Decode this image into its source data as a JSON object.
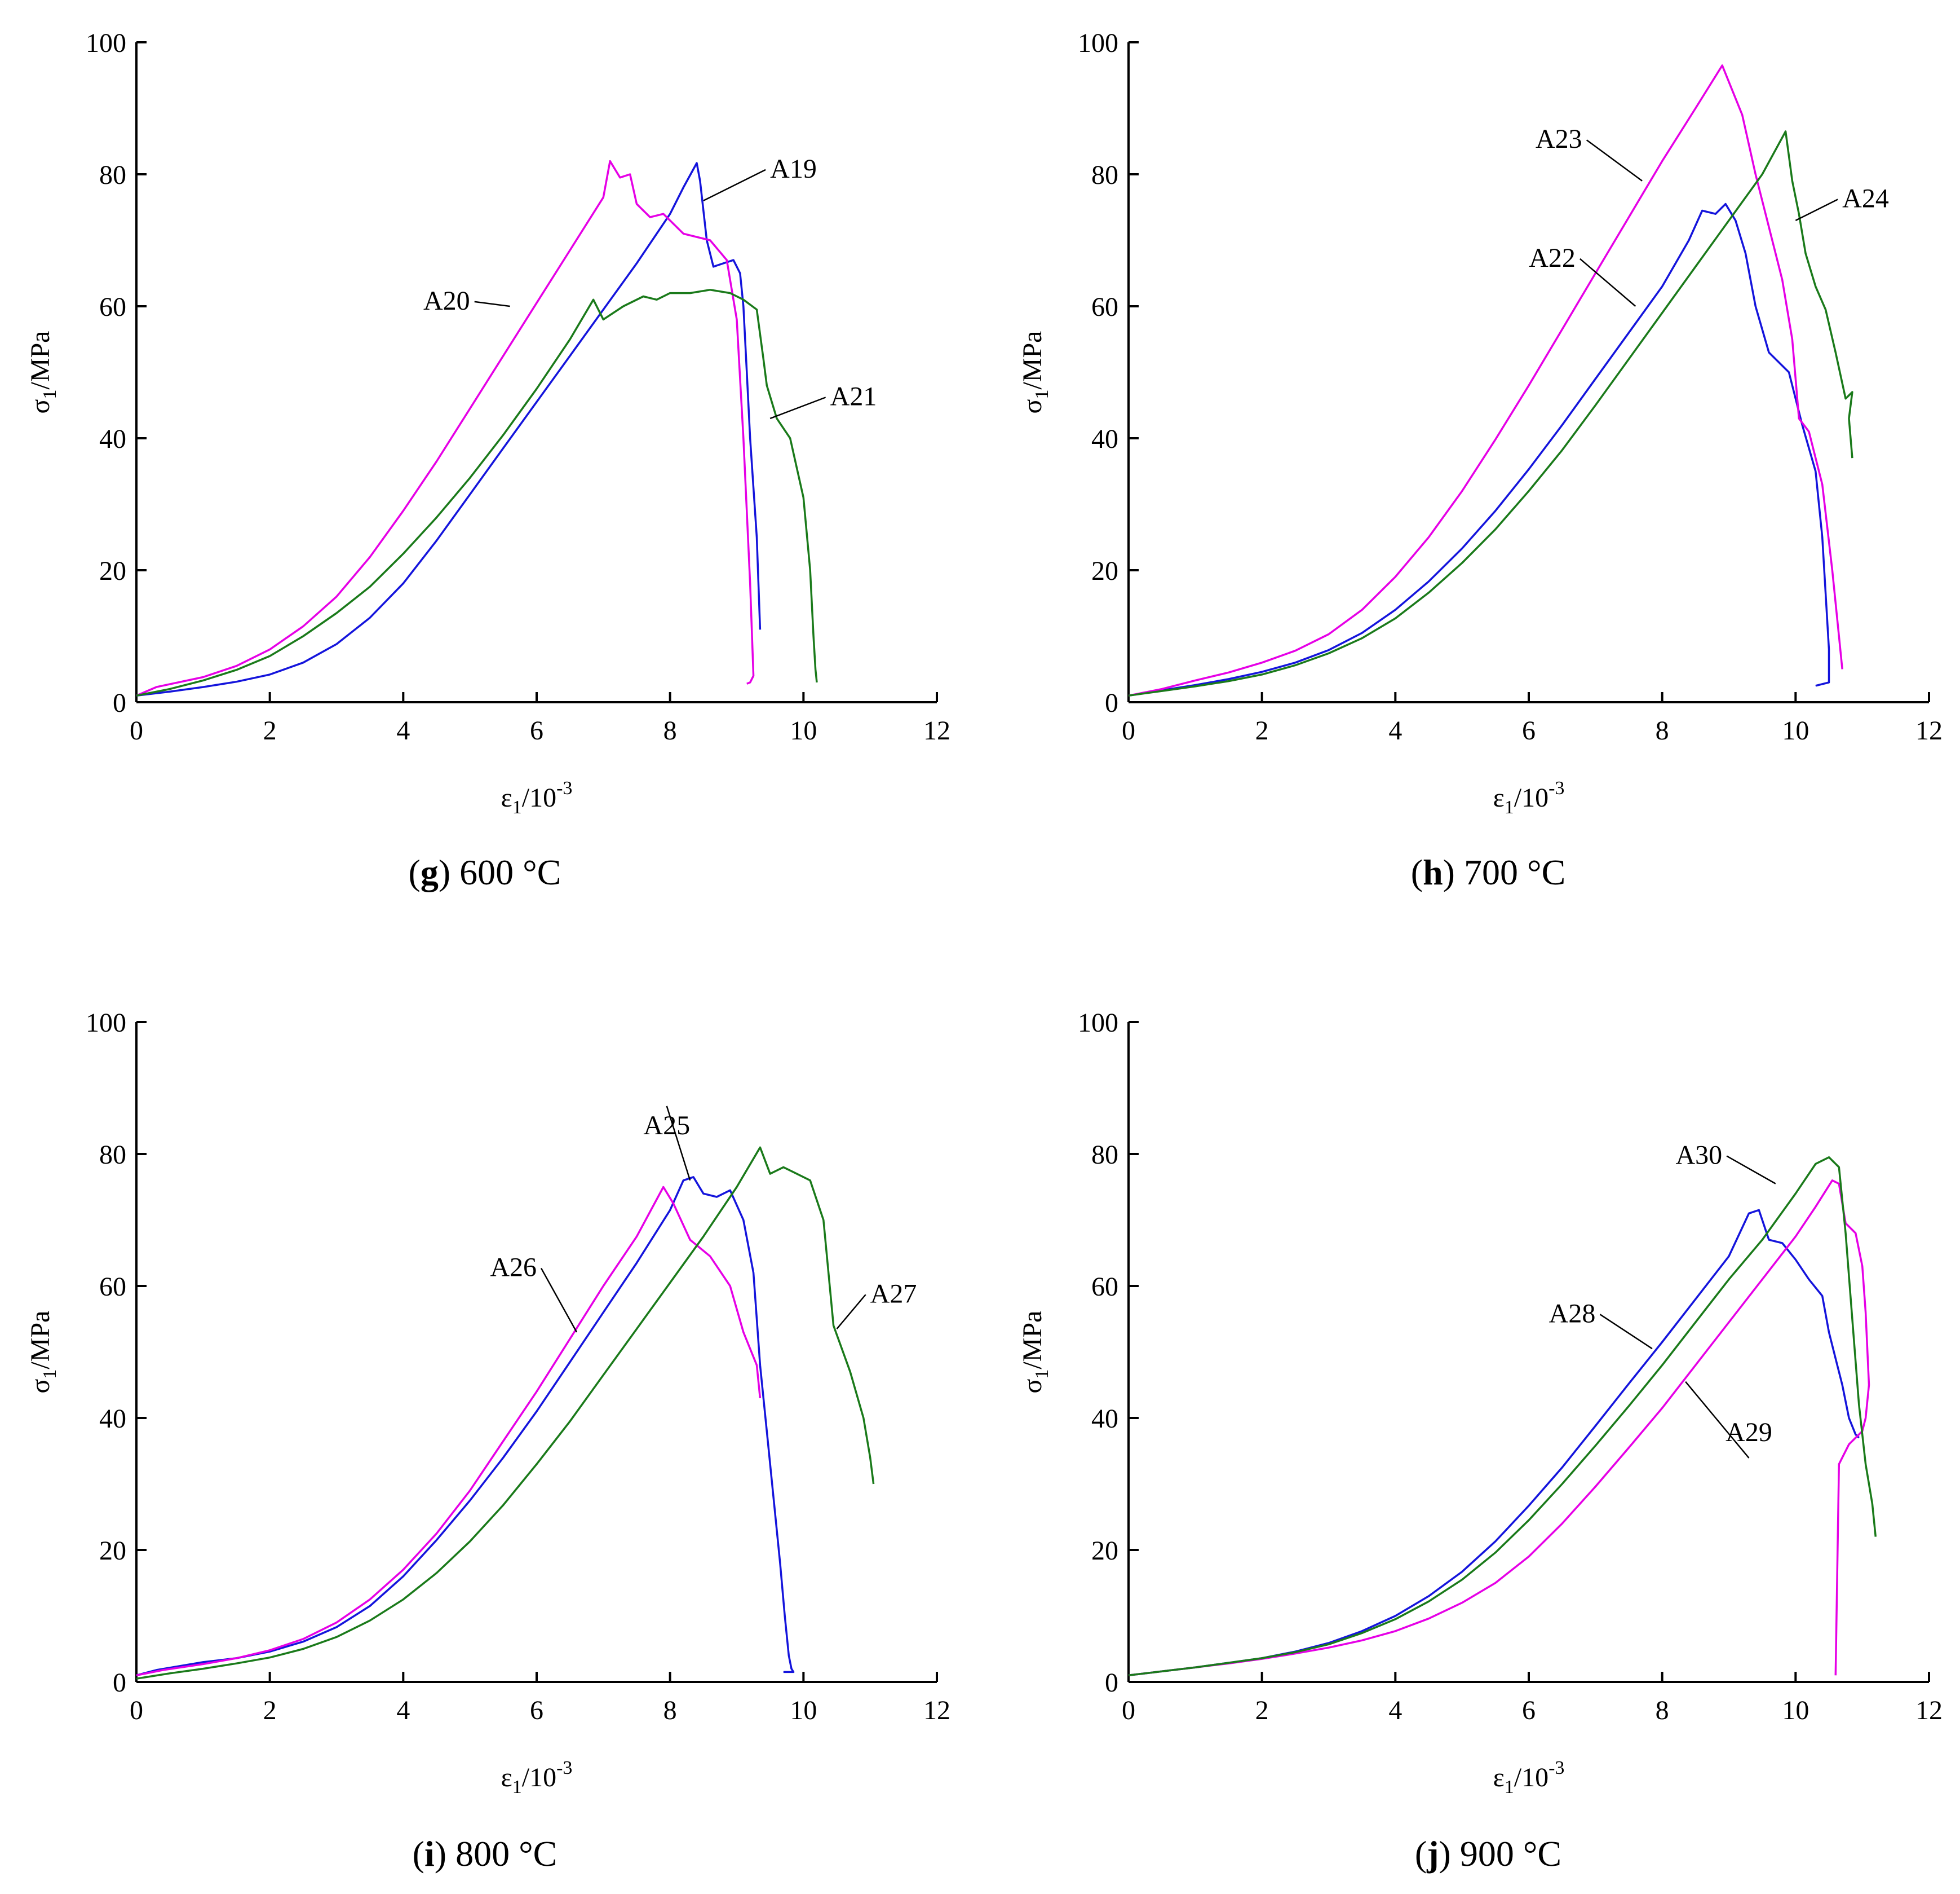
{
  "colors": {
    "axis": "#000000",
    "blue": "#1414dc",
    "magenta": "#e600e6",
    "green": "#1a7a1a"
  },
  "chart_data": [
    {
      "type": "line",
      "panel_letter": "g",
      "caption": "600 °C",
      "xlabel_main": "ε",
      "xlabel_sub": "1",
      "xlabel_tail": "/10",
      "xlabel_sup": "-3",
      "ylabel_main": "σ",
      "ylabel_sub": "1",
      "ylabel_tail": "/MPa",
      "xlim": [
        0,
        12
      ],
      "ylim": [
        0,
        100
      ],
      "xticks": [
        0,
        2,
        4,
        6,
        8,
        10,
        12
      ],
      "yticks": [
        0,
        20,
        40,
        60,
        80,
        100
      ],
      "series": [
        {
          "name": "A19",
          "color": "#1414dc",
          "x": [
            0,
            0.5,
            1,
            1.5,
            2,
            2.5,
            3,
            3.5,
            4,
            4.5,
            5,
            5.5,
            6,
            6.5,
            7,
            7.5,
            8,
            8.2,
            8.4,
            8.45,
            8.55,
            8.65,
            8.8,
            8.95,
            9.05,
            9.1,
            9.15,
            9.2,
            9.3,
            9.35
          ],
          "y": [
            1,
            1.6,
            2.3,
            3.1,
            4.2,
            6,
            8.8,
            12.8,
            18,
            24.5,
            31.5,
            38.5,
            45.5,
            52.5,
            59.5,
            66.5,
            74,
            78,
            81.7,
            79,
            70,
            66,
            66.5,
            67,
            65,
            60,
            50,
            40,
            25,
            11
          ]
        },
        {
          "name": "A20",
          "color": "#e600e6",
          "x": [
            0,
            0.3,
            1,
            1.5,
            2,
            2.5,
            3,
            3.5,
            4,
            4.5,
            5,
            5.5,
            6,
            6.5,
            7,
            7.1,
            7.25,
            7.4,
            7.5,
            7.7,
            7.9,
            8.2,
            8.6,
            8.85,
            9.0,
            9.1,
            9.2,
            9.25,
            9.2,
            9.15
          ],
          "y": [
            1,
            2.3,
            3.8,
            5.5,
            8,
            11.5,
            16,
            22,
            29,
            36.5,
            44.5,
            52.5,
            60.5,
            68.5,
            76.5,
            82,
            79.5,
            80,
            75.5,
            73.5,
            74,
            71,
            70,
            67,
            58,
            40,
            18,
            4,
            3,
            2.8
          ]
        },
        {
          "name": "A21",
          "color": "#1a7a1a",
          "x": [
            0,
            0.5,
            1,
            1.5,
            2,
            2.5,
            3,
            3.5,
            4,
            4.5,
            5,
            5.5,
            6,
            6.5,
            6.85,
            7.0,
            7.3,
            7.6,
            7.8,
            8.0,
            8.3,
            8.6,
            8.9,
            9.1,
            9.3,
            9.4,
            9.45,
            9.6,
            9.8,
            10.0,
            10.1,
            10.15,
            10.18,
            10.2
          ],
          "y": [
            1,
            2,
            3.3,
            4.9,
            7,
            10,
            13.5,
            17.5,
            22.5,
            28,
            34,
            40.5,
            47.5,
            55,
            61,
            58,
            60,
            61.5,
            61,
            62,
            62,
            62.5,
            62,
            61,
            59.5,
            52,
            48,
            43,
            40,
            31,
            20,
            10,
            5,
            3
          ]
        }
      ],
      "annotations": [
        {
          "text": "A19",
          "x": 8.5,
          "y": 76,
          "tx": 9.5,
          "ty": 79.5,
          "anchor": "start"
        },
        {
          "text": "A20",
          "x": 5.6,
          "y": 60,
          "tx": 5.0,
          "ty": 59.5,
          "anchor": "end"
        },
        {
          "text": "A21",
          "x": 9.5,
          "y": 43,
          "tx": 10.4,
          "ty": 45,
          "anchor": "start"
        }
      ]
    },
    {
      "type": "line",
      "panel_letter": "h",
      "caption": "700 °C",
      "xlabel_main": "ε",
      "xlabel_sub": "1",
      "xlabel_tail": "/10",
      "xlabel_sup": "-3",
      "ylabel_main": "σ",
      "ylabel_sub": "1",
      "ylabel_tail": "/MPa",
      "xlim": [
        0,
        12
      ],
      "ylim": [
        0,
        100
      ],
      "xticks": [
        0,
        2,
        4,
        6,
        8,
        10,
        12
      ],
      "yticks": [
        0,
        20,
        40,
        60,
        80,
        100
      ],
      "series": [
        {
          "name": "A22",
          "color": "#1414dc",
          "x": [
            0,
            0.5,
            1,
            1.5,
            2,
            2.5,
            3,
            3.5,
            4,
            4.5,
            5,
            5.5,
            6,
            6.5,
            7,
            7.5,
            8,
            8.4,
            8.6,
            8.8,
            8.95,
            9.1,
            9.25,
            9.4,
            9.6,
            9.9,
            10.1,
            10.3,
            10.4,
            10.5,
            10.5,
            10.3
          ],
          "y": [
            1,
            1.8,
            2.6,
            3.5,
            4.6,
            6,
            7.9,
            10.5,
            14,
            18.3,
            23.3,
            29,
            35.3,
            42,
            49,
            56,
            63,
            70,
            74.5,
            74,
            75.5,
            73,
            68,
            60,
            53,
            50,
            42,
            35,
            25,
            8,
            3,
            2.5
          ]
        },
        {
          "name": "A23",
          "color": "#e600e6",
          "x": [
            0,
            0.5,
            1,
            1.5,
            2,
            2.5,
            3,
            3.5,
            4,
            4.5,
            5,
            5.5,
            6,
            6.5,
            7,
            7.5,
            8,
            8.5,
            8.9,
            9.0,
            9.2,
            9.4,
            9.6,
            9.8,
            9.95,
            10.05,
            10.2,
            10.4,
            10.55,
            10.65,
            10.7
          ],
          "y": [
            1,
            2,
            3.3,
            4.5,
            6,
            7.8,
            10.3,
            14,
            19,
            25,
            32,
            39.8,
            48,
            56.5,
            65,
            73.5,
            82,
            90,
            96.5,
            94,
            89,
            80,
            72,
            64,
            55,
            43,
            41,
            33,
            20,
            10,
            5
          ]
        },
        {
          "name": "A24",
          "color": "#1a7a1a",
          "x": [
            0,
            0.5,
            1,
            1.5,
            2,
            2.5,
            3,
            3.5,
            4,
            4.5,
            5,
            5.5,
            6,
            6.5,
            7,
            7.5,
            8,
            8.5,
            9,
            9.5,
            9.85,
            9.95,
            10.05,
            10.15,
            10.3,
            10.45,
            10.6,
            10.75,
            10.85,
            10.8,
            10.85
          ],
          "y": [
            1,
            1.7,
            2.4,
            3.2,
            4.2,
            5.6,
            7.4,
            9.7,
            12.7,
            16.6,
            21.1,
            26.2,
            32,
            38.2,
            45,
            52,
            59,
            66,
            73,
            80,
            86.5,
            79,
            74,
            68,
            63,
            59.5,
            53,
            46,
            47,
            43,
            37
          ]
        }
      ],
      "annotations": [
        {
          "text": "A22",
          "x": 7.6,
          "y": 60,
          "tx": 6.7,
          "ty": 66,
          "anchor": "end"
        },
        {
          "text": "A23",
          "x": 7.7,
          "y": 79,
          "tx": 6.8,
          "ty": 84,
          "anchor": "end"
        },
        {
          "text": "A24",
          "x": 10.0,
          "y": 73,
          "tx": 10.7,
          "ty": 75,
          "anchor": "start"
        }
      ]
    },
    {
      "type": "line",
      "panel_letter": "i",
      "caption": "800 °C",
      "xlabel_main": "ε",
      "xlabel_sub": "1",
      "xlabel_tail": "/10",
      "xlabel_sup": "-3",
      "ylabel_main": "σ",
      "ylabel_sub": "1",
      "ylabel_tail": "/MPa",
      "xlim": [
        0,
        12
      ],
      "ylim": [
        0,
        100
      ],
      "xticks": [
        0,
        2,
        4,
        6,
        8,
        10,
        12
      ],
      "yticks": [
        0,
        20,
        40,
        60,
        80,
        100
      ],
      "series": [
        {
          "name": "A25",
          "color": "#1414dc",
          "x": [
            0,
            0.3,
            1,
            1.5,
            2,
            2.5,
            3,
            3.5,
            4,
            4.5,
            5,
            5.5,
            6,
            6.5,
            7,
            7.5,
            8,
            8.2,
            8.35,
            8.5,
            8.7,
            8.9,
            9.1,
            9.25,
            9.35,
            9.45,
            9.55,
            9.65,
            9.72,
            9.78,
            9.82,
            9.85,
            9.7
          ],
          "y": [
            1,
            1.8,
            3,
            3.6,
            4.6,
            6.1,
            8.3,
            11.5,
            16,
            21.5,
            27.5,
            34,
            41,
            48.5,
            56,
            63.5,
            71.5,
            76,
            76.5,
            74,
            73.5,
            74.5,
            70,
            62,
            48,
            38,
            28,
            18,
            10,
            4,
            2,
            1.5,
            1.5
          ]
        },
        {
          "name": "A26",
          "color": "#e600e6",
          "x": [
            0,
            0.4,
            1,
            1.5,
            2,
            2.5,
            3,
            3.5,
            4,
            4.5,
            5,
            5.5,
            6,
            6.5,
            7,
            7.5,
            7.9,
            8.05,
            8.3,
            8.6,
            8.9,
            9.1,
            9.3,
            9.35
          ],
          "y": [
            1,
            1.8,
            2.7,
            3.6,
            4.8,
            6.5,
            9,
            12.5,
            17,
            22.5,
            29,
            36.5,
            44,
            52,
            60,
            67.5,
            75,
            72.5,
            67,
            64.5,
            60,
            53,
            48,
            43
          ]
        },
        {
          "name": "A27",
          "color": "#1a7a1a",
          "x": [
            0,
            0.5,
            1,
            1.5,
            2,
            2.5,
            3,
            3.5,
            4,
            4.5,
            5,
            5.5,
            6,
            6.5,
            7,
            7.5,
            8,
            8.5,
            9,
            9.35,
            9.5,
            9.7,
            9.9,
            10.1,
            10.3,
            10.45,
            10.7,
            10.9,
            11.0,
            11.05
          ],
          "y": [
            0.5,
            1.3,
            2,
            2.8,
            3.7,
            5,
            6.8,
            9.3,
            12.5,
            16.5,
            21.3,
            26.8,
            33,
            39.5,
            46.5,
            53.5,
            60.5,
            67.5,
            75,
            81,
            77,
            78,
            77,
            76,
            70,
            54,
            47,
            40,
            34,
            30
          ]
        }
      ],
      "annotations": [
        {
          "text": "A25",
          "x": 8.3,
          "y": 76,
          "tx": 7.95,
          "ty": 83,
          "anchor": "middle"
        },
        {
          "text": "A26",
          "x": 6.6,
          "y": 53,
          "tx": 6.0,
          "ty": 61.5,
          "anchor": "end"
        },
        {
          "text": "A27",
          "x": 10.5,
          "y": 53.5,
          "tx": 11.0,
          "ty": 57.5,
          "anchor": "start"
        }
      ]
    },
    {
      "type": "line",
      "panel_letter": "j",
      "caption": "900 °C",
      "xlabel_main": "ε",
      "xlabel_sub": "1",
      "xlabel_tail": "/10",
      "xlabel_sup": "-3",
      "ylabel_main": "σ",
      "ylabel_sub": "1",
      "ylabel_tail": "/MPa",
      "xlim": [
        0,
        12
      ],
      "ylim": [
        0,
        100
      ],
      "xticks": [
        0,
        2,
        4,
        6,
        8,
        10,
        12
      ],
      "yticks": [
        0,
        20,
        40,
        60,
        80,
        100
      ],
      "series": [
        {
          "name": "A28",
          "color": "#1414dc",
          "x": [
            0,
            0.5,
            1,
            1.5,
            2,
            2.5,
            3,
            3.5,
            4,
            4.5,
            5,
            5.5,
            6,
            6.5,
            7,
            7.5,
            8,
            8.5,
            9,
            9.3,
            9.45,
            9.6,
            9.8,
            10.0,
            10.2,
            10.4,
            10.5,
            10.6,
            10.7,
            10.8,
            10.9,
            10.95
          ],
          "y": [
            1,
            1.6,
            2.2,
            2.9,
            3.6,
            4.6,
            5.9,
            7.7,
            10,
            13,
            16.7,
            21.3,
            26.7,
            32.5,
            38.8,
            45.2,
            51.5,
            58,
            64.5,
            71,
            71.5,
            67,
            66.5,
            64,
            61,
            58.5,
            53,
            49,
            45,
            40,
            37.5,
            37
          ]
        },
        {
          "name": "A29",
          "color": "#e600e6",
          "x": [
            0,
            0.5,
            1,
            1.5,
            2,
            2.5,
            3,
            3.5,
            4,
            4.5,
            5,
            5.5,
            6,
            6.5,
            7,
            7.5,
            8,
            8.5,
            9,
            9.5,
            10,
            10.3,
            10.55,
            10.65,
            10.75,
            10.9,
            11.0,
            11.05,
            11.1,
            11.05,
            11.0,
            10.9,
            10.8,
            10.7,
            10.65,
            10.6
          ],
          "y": [
            1,
            1.6,
            2.2,
            2.8,
            3.5,
            4.3,
            5.2,
            6.3,
            7.7,
            9.6,
            12,
            15,
            19,
            24,
            29.6,
            35.5,
            41.5,
            48,
            54.5,
            61,
            67.5,
            72,
            76,
            75.5,
            69.5,
            68,
            63,
            56,
            45,
            40,
            38,
            37,
            36,
            34,
            33,
            1
          ]
        },
        {
          "name": "A30",
          "color": "#1a7a1a",
          "x": [
            0,
            0.5,
            1,
            1.5,
            2,
            2.5,
            3,
            3.5,
            4,
            4.5,
            5,
            5.5,
            6,
            6.5,
            7,
            7.5,
            8,
            8.5,
            9,
            9.5,
            10,
            10.3,
            10.5,
            10.65,
            10.75,
            10.85,
            10.95,
            11.05,
            11.15,
            11.2
          ],
          "y": [
            1,
            1.6,
            2.2,
            2.9,
            3.6,
            4.5,
            5.7,
            7.4,
            9.5,
            12.2,
            15.5,
            19.6,
            24.5,
            30,
            35.8,
            41.8,
            48,
            54.5,
            61,
            67,
            74,
            78.5,
            79.5,
            78,
            68,
            55,
            42,
            33,
            27,
            22
          ]
        }
      ],
      "annotations": [
        {
          "text": "A28",
          "x": 7.85,
          "y": 50.5,
          "tx": 7.0,
          "ty": 54.5,
          "anchor": "end"
        },
        {
          "text": "A29",
          "x": 8.35,
          "y": 45.5,
          "tx": 9.3,
          "ty": 36.5,
          "anchor": "middle"
        },
        {
          "text": "A30",
          "x": 9.7,
          "y": 75.5,
          "tx": 8.9,
          "ty": 78.5,
          "anchor": "end"
        }
      ]
    }
  ]
}
